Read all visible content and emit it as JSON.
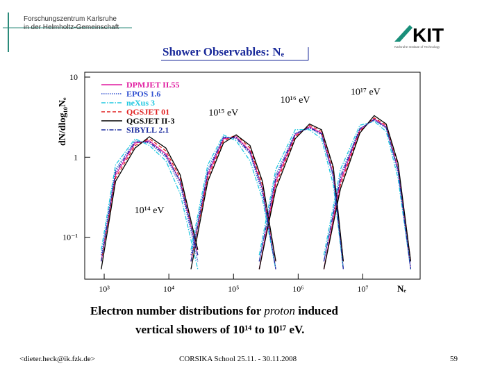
{
  "header": {
    "org_line1": "Forschungszentrum Karlsruhe",
    "org_line2": "in der Helmholtz-Gemeinschaft",
    "logo": "KIT",
    "logo_sub": "Karlsruhe Institute of Technology"
  },
  "chart_data": {
    "type": "line",
    "title": "Shower Observables: Nₑ",
    "ylabel": "dN/dlog₁₀Nₑ",
    "xlabel": "Nₑ",
    "xscale": "log",
    "yscale": "log",
    "legend": "upper left",
    "xlim": [
      500,
      77000000
    ],
    "ylim": [
      0.03,
      11.5
    ],
    "xticks": [
      {
        "value": 1000,
        "label": "10³"
      },
      {
        "value": 10000,
        "label": "10⁴"
      },
      {
        "value": 100000,
        "label": "10⁵"
      },
      {
        "value": 1000000,
        "label": "10⁶"
      },
      {
        "value": 10000000,
        "label": "10⁷"
      }
    ],
    "yticks": [
      10,
      1,
      {
        "value": 0.1,
        "label": "10⁻¹"
      }
    ],
    "annotations": [
      {
        "text": "10¹⁴ eV",
        "x": 5000,
        "y": 0.2
      },
      {
        "text": "10¹⁵ eV",
        "x": 70000,
        "y": 3.3
      },
      {
        "text": "10¹⁶ eV",
        "x": 900000,
        "y": 4.8
      },
      {
        "text": "10¹⁷ eV",
        "x": 11000000,
        "y": 6.0
      }
    ],
    "x": [
      900,
      1500,
      3000,
      5000,
      9000,
      15000,
      28000,
      30000,
      22000,
      40000,
      70000,
      110000,
      180000,
      280000,
      450000,
      300000,
      250000,
      450000,
      900000,
      1500000,
      2300000,
      3500000,
      5000000,
      3000000,
      2500000,
      4500000,
      9000000,
      15000000,
      23000000,
      35000000,
      55000000
    ],
    "series": [
      {
        "name": "DPMJET II.55",
        "color": "#e0199f",
        "style": "solid",
        "values": [
          0.05,
          0.6,
          1.5,
          1.6,
          1.1,
          0.5,
          0.06,
          null,
          0.05,
          0.6,
          1.7,
          1.8,
          1.2,
          0.4,
          0.04,
          null,
          0.04,
          0.5,
          1.9,
          2.4,
          2.0,
          0.6,
          0.04,
          null,
          0.04,
          0.5,
          2.2,
          3.0,
          2.4,
          0.7,
          0.04
        ]
      },
      {
        "name": "EPOS 1.6",
        "color": "#3050d0",
        "style": "dotted",
        "values": [
          0.06,
          0.7,
          1.6,
          1.5,
          1.0,
          0.45,
          0.05,
          null,
          0.06,
          0.7,
          1.8,
          1.7,
          1.1,
          0.35,
          0.04,
          null,
          0.05,
          0.6,
          2.0,
          2.3,
          1.9,
          0.55,
          0.04,
          null,
          0.05,
          0.6,
          2.3,
          2.9,
          2.3,
          0.65,
          0.04
        ]
      },
      {
        "name": "neXus 3",
        "color": "#20c8e0",
        "style": "dashdot",
        "values": [
          0.07,
          0.8,
          1.7,
          1.4,
          0.9,
          0.35,
          0.04,
          null,
          0.07,
          0.8,
          1.9,
          1.6,
          0.9,
          0.3,
          0.04,
          null,
          0.06,
          0.7,
          2.2,
          2.2,
          1.7,
          0.45,
          0.04,
          null,
          0.06,
          0.7,
          2.5,
          2.8,
          2.1,
          0.55,
          0.04
        ]
      },
      {
        "name": "QGSJET 01",
        "color": "#e02020",
        "style": "dashed",
        "values": [
          0.05,
          0.55,
          1.4,
          1.7,
          1.2,
          0.55,
          0.07,
          null,
          0.05,
          0.55,
          1.6,
          1.9,
          1.3,
          0.45,
          0.05,
          null,
          0.04,
          0.45,
          1.8,
          2.5,
          2.1,
          0.7,
          0.05,
          null,
          0.04,
          0.45,
          2.1,
          3.1,
          2.5,
          0.8,
          0.05
        ]
      },
      {
        "name": "QGSJET II-3",
        "color": "#000000",
        "style": "solid",
        "values": [
          0.04,
          0.5,
          1.3,
          1.8,
          1.3,
          0.6,
          0.07,
          null,
          0.04,
          0.5,
          1.5,
          1.9,
          1.4,
          0.5,
          0.05,
          null,
          0.04,
          0.4,
          1.7,
          2.6,
          2.2,
          0.75,
          0.05,
          null,
          0.04,
          0.4,
          2.0,
          3.3,
          2.6,
          0.85,
          0.05
        ]
      },
      {
        "name": "SIBYLL 2.1",
        "color": "#2030a0",
        "style": "dashdot",
        "values": [
          0.05,
          0.65,
          1.55,
          1.55,
          1.05,
          0.5,
          0.06,
          null,
          0.05,
          0.65,
          1.75,
          1.75,
          1.15,
          0.4,
          0.04,
          null,
          0.05,
          0.55,
          1.95,
          2.35,
          1.95,
          0.6,
          0.04,
          null,
          0.05,
          0.55,
          2.25,
          2.95,
          2.35,
          0.7,
          0.04
        ]
      }
    ]
  },
  "caption": {
    "line1_a": "Electron number distributions for ",
    "line1_b": "proton",
    "line1_c": " induced",
    "line2": "vertical showers of 10¹⁴ to 10¹⁷ eV."
  },
  "footer": {
    "email": "<dieter.heck@ik.fzk.de>",
    "event": "CORSIKA School 25.11. - 30.11.2008",
    "page": "59"
  }
}
